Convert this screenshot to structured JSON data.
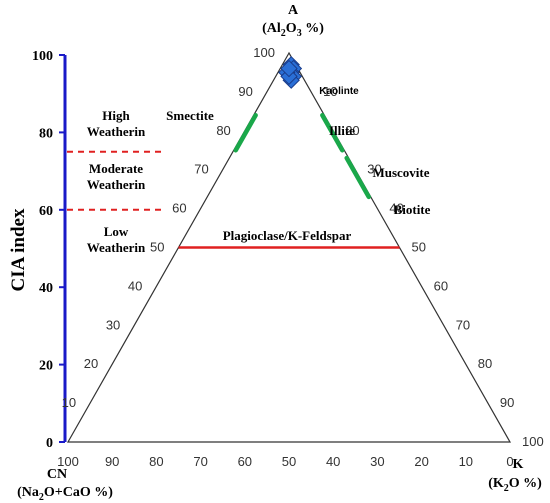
{
  "chart_data": {
    "type": "ternary",
    "apexes": {
      "top": {
        "label": "A",
        "sublabel_parts": [
          "(Al",
          "2",
          "O",
          "3",
          " %)"
        ]
      },
      "left": {
        "label": "CN",
        "sublabel_parts": [
          "(Na",
          "2",
          "O+CaO %)"
        ]
      },
      "right": {
        "label": "K",
        "sublabel_parts": [
          "(K",
          "2",
          "O %)"
        ]
      }
    },
    "left_edge_ticks": [
      10,
      20,
      30,
      40,
      50,
      60,
      70,
      80,
      90,
      100
    ],
    "right_edge_ticks": [
      10,
      20,
      30,
      40,
      50,
      60,
      70,
      80,
      90,
      100
    ],
    "bottom_edge_ticks": [
      100,
      90,
      80,
      70,
      60,
      50,
      40,
      30,
      20,
      10,
      0
    ],
    "cia_axis": {
      "label": "CIA index",
      "ticks": [
        0,
        20,
        40,
        60,
        80,
        100
      ],
      "color": "#1a1ac8"
    },
    "weathering_zones": [
      {
        "lines": [
          "High",
          "Weatherin"
        ],
        "range": [
          75,
          100
        ]
      },
      {
        "lines": [
          "Moderate",
          "Weatherin"
        ],
        "range": [
          60,
          75
        ]
      },
      {
        "lines": [
          "Low",
          "Weatherin"
        ],
        "range": [
          50,
          60
        ]
      }
    ],
    "zone_boundaries": [
      75,
      60
    ],
    "zone_boundary_color": "#e02020",
    "minerals": [
      {
        "name": "Kaolinte",
        "A": 100
      },
      {
        "name": "Smectite",
        "A_range": [
          75,
          84
        ]
      },
      {
        "name": "Illite",
        "A_range": [
          75,
          84
        ]
      },
      {
        "name": "Muscovite",
        "A_range": [
          63,
          73
        ]
      },
      {
        "name": "Biotite",
        "A": 62
      },
      {
        "name": "Plagioclase/K-Feldspar",
        "A": 50
      }
    ],
    "mineral_segment_color": "#1aa84a",
    "feldspar_line_color": "#e02020",
    "samples": {
      "marker": "diamond",
      "color": "#2a6fd6",
      "points": [
        {
          "A": 97,
          "CN": 1,
          "K": 2
        },
        {
          "A": 96,
          "CN": 1,
          "K": 3
        },
        {
          "A": 95,
          "CN": 2,
          "K": 3
        },
        {
          "A": 94,
          "CN": 2,
          "K": 4
        },
        {
          "A": 93,
          "CN": 3,
          "K": 4
        },
        {
          "A": 95,
          "CN": 3,
          "K": 2
        },
        {
          "A": 94,
          "CN": 3,
          "K": 3
        },
        {
          "A": 96,
          "CN": 2,
          "K": 2
        }
      ]
    }
  }
}
